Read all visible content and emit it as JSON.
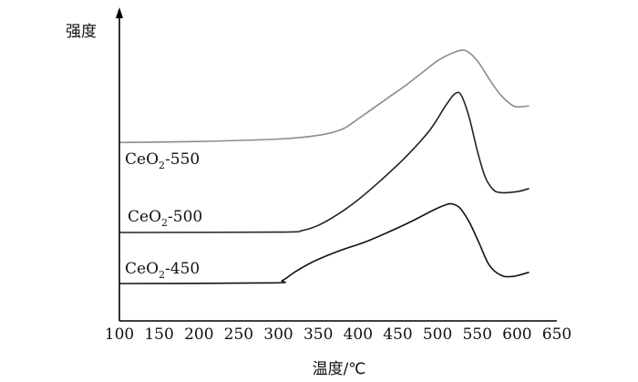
{
  "chart_data": {
    "type": "line",
    "title": "",
    "xlabel": "温度/℃",
    "ylabel": "强度",
    "xlim": [
      100,
      650
    ],
    "x_ticks": [
      100,
      150,
      200,
      250,
      300,
      350,
      400,
      450,
      500,
      550,
      600,
      650
    ],
    "y_ticks": [],
    "grid": false,
    "legend": "inline labels on the left",
    "series": [
      {
        "name": "CeO2-550",
        "label_main": "CeO",
        "label_sub": "2",
        "label_suffix": "-550",
        "color": "#8c8c8c",
        "points": [
          [
            100,
            1.55
          ],
          [
            200,
            1.6
          ],
          [
            300,
            1.72
          ],
          [
            350,
            1.9
          ],
          [
            380,
            2.2
          ],
          [
            400,
            2.7
          ],
          [
            420,
            3.25
          ],
          [
            440,
            3.8
          ],
          [
            460,
            4.35
          ],
          [
            480,
            4.95
          ],
          [
            500,
            5.55
          ],
          [
            520,
            5.95
          ],
          [
            535,
            6.05
          ],
          [
            550,
            5.55
          ],
          [
            565,
            4.65
          ],
          [
            580,
            3.85
          ],
          [
            595,
            3.35
          ],
          [
            605,
            3.3
          ],
          [
            615,
            3.35
          ]
        ]
      },
      {
        "name": "CeO2-500",
        "label_main": "CeO",
        "label_sub": "2",
        "label_suffix": "-500",
        "color": "#222222",
        "points": [
          [
            100,
            0.0
          ],
          [
            300,
            0.02
          ],
          [
            330,
            0.1
          ],
          [
            350,
            0.35
          ],
          [
            375,
            0.9
          ],
          [
            400,
            1.6
          ],
          [
            430,
            2.6
          ],
          [
            460,
            3.7
          ],
          [
            490,
            5.0
          ],
          [
            510,
            6.2
          ],
          [
            522,
            6.8
          ],
          [
            530,
            6.7
          ],
          [
            540,
            5.6
          ],
          [
            550,
            4.0
          ],
          [
            560,
            2.7
          ],
          [
            570,
            2.1
          ],
          [
            580,
            1.95
          ],
          [
            600,
            2.0
          ],
          [
            615,
            2.15
          ]
        ]
      },
      {
        "name": "CeO2-450",
        "label_main": "CeO",
        "label_sub": "2",
        "label_suffix": "-450",
        "color": "#111111",
        "points": [
          [
            100,
            0.0
          ],
          [
            290,
            0.03
          ],
          [
            305,
            0.15
          ],
          [
            320,
            0.55
          ],
          [
            340,
            1.0
          ],
          [
            360,
            1.35
          ],
          [
            380,
            1.65
          ],
          [
            410,
            2.05
          ],
          [
            440,
            2.55
          ],
          [
            470,
            3.1
          ],
          [
            495,
            3.6
          ],
          [
            510,
            3.85
          ],
          [
            518,
            3.9
          ],
          [
            528,
            3.7
          ],
          [
            540,
            3.0
          ],
          [
            552,
            2.0
          ],
          [
            565,
            0.9
          ],
          [
            580,
            0.4
          ],
          [
            595,
            0.35
          ],
          [
            615,
            0.55
          ]
        ]
      }
    ]
  }
}
